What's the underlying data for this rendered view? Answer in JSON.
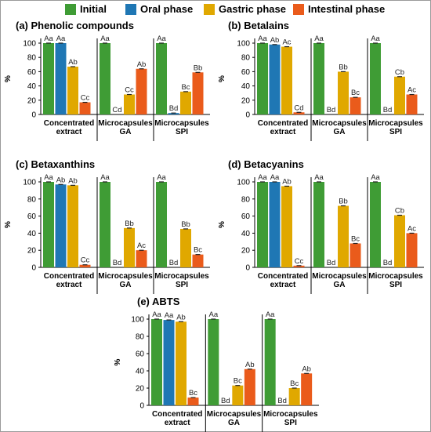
{
  "legend": {
    "initial": {
      "label": "Initial",
      "color": "#3f9c35"
    },
    "oral": {
      "label": "Oral phase",
      "color": "#1f77b4"
    },
    "gastric": {
      "label": "Gastric phase",
      "color": "#e0a800"
    },
    "intestinal": {
      "label": "Intestinal phase",
      "color": "#ea5b1b"
    }
  },
  "chart_data": [
    {
      "type": "bar",
      "title": "(a) Phenolic compounds",
      "ylabel": "%",
      "ylim": [
        0,
        100
      ],
      "yticks": [
        0,
        20,
        40,
        60,
        80,
        100
      ],
      "groups": [
        {
          "label": [
            "Concentrated",
            "extract"
          ],
          "bars": [
            {
              "phase": "initial",
              "value": 100,
              "letter": "Aa"
            },
            {
              "phase": "oral",
              "value": 100,
              "letter": "Aa"
            },
            {
              "phase": "gastric",
              "value": 67,
              "letter": "Ab"
            },
            {
              "phase": "intestinal",
              "value": 17,
              "letter": "Cc"
            }
          ]
        },
        {
          "label": [
            "Microcapsules",
            "GA"
          ],
          "bars": [
            {
              "phase": "initial",
              "value": 100,
              "letter": "Aa"
            },
            {
              "phase": "oral",
              "value": 0,
              "letter": "Cd"
            },
            {
              "phase": "gastric",
              "value": 28,
              "letter": "Cc"
            },
            {
              "phase": "intestinal",
              "value": 64,
              "letter": "Ab"
            }
          ]
        },
        {
          "label": [
            "Microcapsules",
            "SPI"
          ],
          "bars": [
            {
              "phase": "initial",
              "value": 100,
              "letter": "Aa"
            },
            {
              "phase": "oral",
              "value": 2,
              "letter": "Bd"
            },
            {
              "phase": "gastric",
              "value": 32,
              "letter": "Bc"
            },
            {
              "phase": "intestinal",
              "value": 59,
              "letter": "Bb"
            }
          ]
        }
      ]
    },
    {
      "type": "bar",
      "title": "(b) Betalains",
      "ylabel": "%",
      "ylim": [
        0,
        100
      ],
      "yticks": [
        0,
        20,
        40,
        60,
        80,
        100
      ],
      "groups": [
        {
          "label": [
            "Concentrated",
            "extract"
          ],
          "bars": [
            {
              "phase": "initial",
              "value": 100,
              "letter": "Aa"
            },
            {
              "phase": "oral",
              "value": 98,
              "letter": "Ab"
            },
            {
              "phase": "gastric",
              "value": 95,
              "letter": "Ac"
            },
            {
              "phase": "intestinal",
              "value": 3,
              "letter": "Cd"
            }
          ]
        },
        {
          "label": [
            "Microcapsules",
            "GA"
          ],
          "bars": [
            {
              "phase": "initial",
              "value": 100,
              "letter": "Aa"
            },
            {
              "phase": "oral",
              "value": 0,
              "letter": "Bd"
            },
            {
              "phase": "gastric",
              "value": 60,
              "letter": "Bb"
            },
            {
              "phase": "intestinal",
              "value": 24,
              "letter": "Bc"
            }
          ]
        },
        {
          "label": [
            "Microcapsules",
            "SPI"
          ],
          "bars": [
            {
              "phase": "initial",
              "value": 100,
              "letter": "Aa"
            },
            {
              "phase": "oral",
              "value": 0,
              "letter": "Bd"
            },
            {
              "phase": "gastric",
              "value": 53,
              "letter": "Cb"
            },
            {
              "phase": "intestinal",
              "value": 28,
              "letter": "Ac"
            }
          ]
        }
      ]
    },
    {
      "type": "bar",
      "title": "(c) Betaxanthins",
      "ylabel": "%",
      "ylim": [
        0,
        100
      ],
      "yticks": [
        0,
        20,
        40,
        60,
        80,
        100
      ],
      "groups": [
        {
          "label": [
            "Concentrated",
            "extract"
          ],
          "bars": [
            {
              "phase": "initial",
              "value": 100,
              "letter": "Aa"
            },
            {
              "phase": "oral",
              "value": 97,
              "letter": "Ab"
            },
            {
              "phase": "gastric",
              "value": 96,
              "letter": "Ab"
            },
            {
              "phase": "intestinal",
              "value": 3,
              "letter": "Cc"
            }
          ]
        },
        {
          "label": [
            "Microcapsules",
            "GA"
          ],
          "bars": [
            {
              "phase": "initial",
              "value": 100,
              "letter": "Aa"
            },
            {
              "phase": "oral",
              "value": 0,
              "letter": "Bd"
            },
            {
              "phase": "gastric",
              "value": 46,
              "letter": "Bb"
            },
            {
              "phase": "intestinal",
              "value": 20,
              "letter": "Ac"
            }
          ]
        },
        {
          "label": [
            "Microcapsules",
            "SPI"
          ],
          "bars": [
            {
              "phase": "initial",
              "value": 100,
              "letter": "Aa"
            },
            {
              "phase": "oral",
              "value": 0,
              "letter": "Bd"
            },
            {
              "phase": "gastric",
              "value": 45,
              "letter": "Bb"
            },
            {
              "phase": "intestinal",
              "value": 15,
              "letter": "Bc"
            }
          ]
        }
      ]
    },
    {
      "type": "bar",
      "title": "(d) Betacyanins",
      "ylabel": "%",
      "ylim": [
        0,
        100
      ],
      "yticks": [
        0,
        20,
        40,
        60,
        80,
        100
      ],
      "groups": [
        {
          "label": [
            "Concentrated",
            "extract"
          ],
          "bars": [
            {
              "phase": "initial",
              "value": 100,
              "letter": "Aa"
            },
            {
              "phase": "oral",
              "value": 100,
              "letter": "Aa"
            },
            {
              "phase": "gastric",
              "value": 95,
              "letter": "Ab"
            },
            {
              "phase": "intestinal",
              "value": 2,
              "letter": "Cc"
            }
          ]
        },
        {
          "label": [
            "Microcapsules",
            "GA"
          ],
          "bars": [
            {
              "phase": "initial",
              "value": 100,
              "letter": "Aa"
            },
            {
              "phase": "oral",
              "value": 0,
              "letter": "Bd"
            },
            {
              "phase": "gastric",
              "value": 72,
              "letter": "Bb"
            },
            {
              "phase": "intestinal",
              "value": 28,
              "letter": "Bc"
            }
          ]
        },
        {
          "label": [
            "Microcapsules",
            "SPI"
          ],
          "bars": [
            {
              "phase": "initial",
              "value": 100,
              "letter": "Aa"
            },
            {
              "phase": "oral",
              "value": 0,
              "letter": "Bd"
            },
            {
              "phase": "gastric",
              "value": 61,
              "letter": "Cb"
            },
            {
              "phase": "intestinal",
              "value": 40,
              "letter": "Ac"
            }
          ]
        }
      ]
    },
    {
      "type": "bar",
      "title": "(e) ABTS",
      "ylabel": "%",
      "ylim": [
        0,
        100
      ],
      "yticks": [
        0,
        20,
        40,
        60,
        80,
        100
      ],
      "groups": [
        {
          "label": [
            "Concentrated",
            "extract"
          ],
          "bars": [
            {
              "phase": "initial",
              "value": 100,
              "letter": "Aa"
            },
            {
              "phase": "oral",
              "value": 99,
              "letter": "Aa"
            },
            {
              "phase": "gastric",
              "value": 97,
              "letter": "Ab"
            },
            {
              "phase": "intestinal",
              "value": 9,
              "letter": "Bc"
            }
          ]
        },
        {
          "label": [
            "Microcapsules",
            "GA"
          ],
          "bars": [
            {
              "phase": "initial",
              "value": 100,
              "letter": "Aa"
            },
            {
              "phase": "oral",
              "value": 0,
              "letter": "Bd"
            },
            {
              "phase": "gastric",
              "value": 23,
              "letter": "Bc"
            },
            {
              "phase": "intestinal",
              "value": 42,
              "letter": "Ab"
            }
          ]
        },
        {
          "label": [
            "Microcapsules",
            "SPI"
          ],
          "bars": [
            {
              "phase": "initial",
              "value": 100,
              "letter": "Aa"
            },
            {
              "phase": "oral",
              "value": 0,
              "letter": "Bd"
            },
            {
              "phase": "gastric",
              "value": 20,
              "letter": "Bc"
            },
            {
              "phase": "intestinal",
              "value": 37,
              "letter": "Ab"
            }
          ]
        }
      ]
    }
  ]
}
